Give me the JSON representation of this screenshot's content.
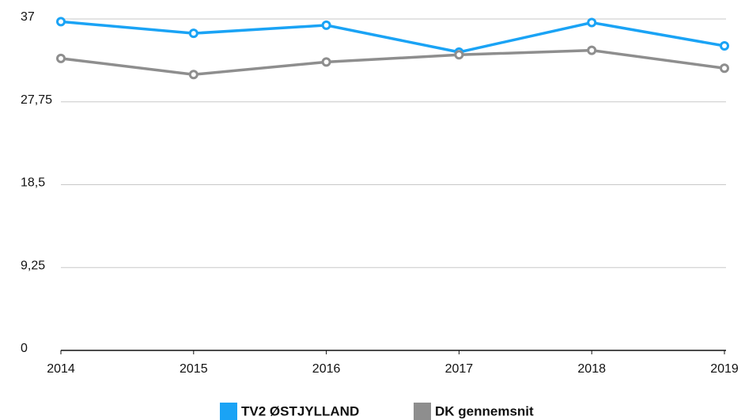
{
  "chart_data": {
    "type": "line",
    "x": [
      2014,
      2015,
      2016,
      2017,
      2018,
      2019
    ],
    "xlim": [
      2014,
      2019
    ],
    "xticks": [
      2014,
      2015,
      2016,
      2017,
      2018,
      2019
    ],
    "ylim": [
      0,
      37
    ],
    "yticks": [
      0,
      {
        "value": 9.25,
        "label": "9,25"
      },
      {
        "value": 18.5,
        "label": "18,5"
      },
      {
        "value": 27.75,
        "label": "27,75"
      },
      37
    ],
    "grid": true,
    "legend": "bottom",
    "series": [
      {
        "name": "TV2 ØSTJYLLAND",
        "color": "#1aa3f5",
        "values": [
          36.7,
          35.4,
          36.3,
          33.3,
          36.6,
          34.0
        ]
      },
      {
        "name": "DK gennemsnit",
        "color": "#8e8e8e",
        "values": [
          32.6,
          30.8,
          32.2,
          33.0,
          33.5,
          31.5
        ]
      }
    ]
  }
}
